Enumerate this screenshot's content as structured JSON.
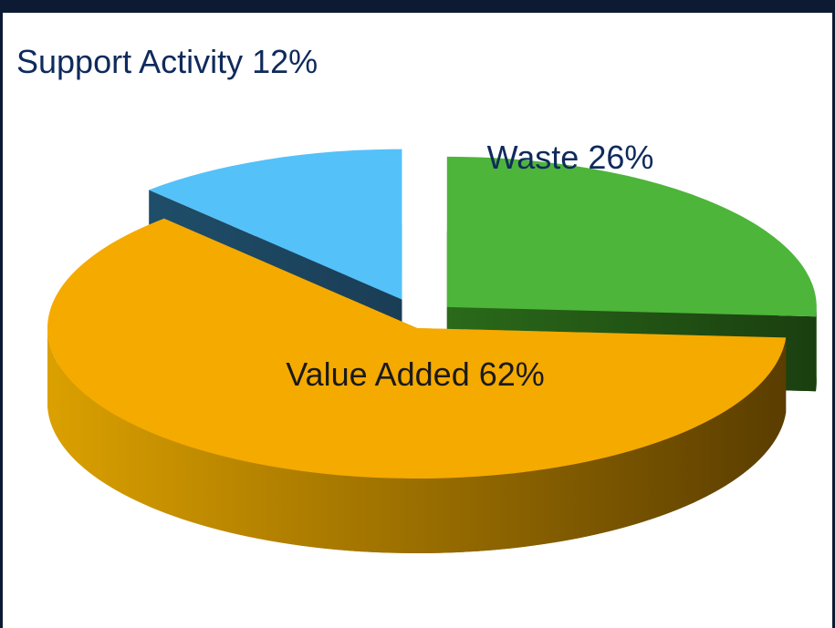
{
  "chart_data": {
    "type": "pie",
    "categories": [
      "Support Activity",
      "Waste",
      "Value Added"
    ],
    "values": [
      12,
      26,
      62
    ],
    "value_labels": [
      "12%",
      "26%",
      "62%"
    ],
    "colors": [
      "#55c1f9",
      "#4db53a",
      "#f5aa00"
    ]
  }
}
